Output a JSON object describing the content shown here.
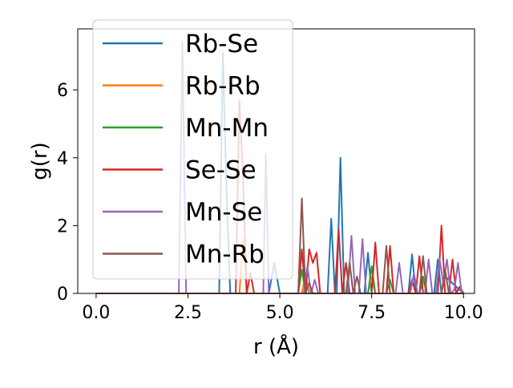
{
  "chart_data": {
    "type": "line",
    "xlabel": "r (Å)",
    "ylabel": "g(r)",
    "xlim": [
      -0.5,
      10.3
    ],
    "ylim": [
      0,
      7.8
    ],
    "xticks": [
      "0.0",
      "2.5",
      "5.0",
      "7.5",
      "10.0"
    ],
    "xtick_values": [
      0,
      2.5,
      5,
      7.5,
      10
    ],
    "yticks": [
      "0",
      "2",
      "4",
      "6"
    ],
    "ytick_values": [
      0,
      2,
      4,
      6
    ],
    "legend_position": "top-left",
    "grid": false,
    "series": [
      {
        "name": "Rb-Se",
        "color": "#1f77b4",
        "x": [
          0,
          3.35,
          3.45,
          3.55,
          3.65,
          4.7,
          4.85,
          5.0,
          6.3,
          6.4,
          6.5,
          6.55,
          6.65,
          6.75,
          7.3,
          7.4,
          7.5,
          8.5,
          8.6,
          8.7,
          9.2,
          9.3,
          9.4,
          9.5,
          10.0
        ],
        "y": [
          0,
          0,
          7.1,
          3.0,
          0,
          0,
          0.9,
          0,
          0,
          2.2,
          0,
          0,
          4.0,
          0,
          0,
          1.2,
          0,
          0,
          1.15,
          0,
          0,
          1.0,
          0,
          0.5,
          0
        ]
      },
      {
        "name": "Rb-Rb",
        "color": "#ff7f0e",
        "x": [
          0,
          3.9,
          4.0,
          4.1,
          5.6,
          5.7,
          5.8,
          7.4,
          7.5,
          7.6,
          8.8,
          8.9,
          9.0,
          10.0
        ],
        "y": [
          0,
          0,
          1.6,
          0,
          0,
          0.6,
          0,
          0,
          0.5,
          0,
          0,
          0.4,
          0,
          0
        ]
      },
      {
        "name": "Mn-Mn",
        "color": "#2ca02c",
        "x": [
          0,
          5.5,
          5.6,
          5.7,
          7.4,
          7.5,
          7.6,
          7.9,
          8.0,
          8.1,
          8.8,
          8.9,
          9.0,
          10.0
        ],
        "y": [
          0,
          0,
          0.7,
          0,
          0,
          0.8,
          0,
          0,
          0.4,
          0,
          0,
          0.5,
          0,
          0
        ]
      },
      {
        "name": "Se-Se",
        "color": "#d62728",
        "x": [
          0,
          3.8,
          3.9,
          4.0,
          4.1,
          4.2,
          4.3,
          5.5,
          5.6,
          5.7,
          5.8,
          5.9,
          6.0,
          6.1,
          6.2,
          6.5,
          6.6,
          6.7,
          6.8,
          6.9,
          7.0,
          7.5,
          7.6,
          7.7,
          7.9,
          8.0,
          8.1,
          8.5,
          8.6,
          8.7,
          8.8,
          8.9,
          9.3,
          9.4,
          9.5,
          9.6,
          9.7,
          9.8,
          9.9,
          10.0
        ],
        "y": [
          0,
          0,
          5.7,
          3.4,
          0,
          0.6,
          0,
          0,
          1.3,
          0,
          1.3,
          0.9,
          1.2,
          0,
          0,
          0,
          1.9,
          0,
          0.9,
          0,
          0,
          0,
          1.5,
          0,
          0,
          1.4,
          0,
          0,
          0.4,
          0,
          1.1,
          0,
          0,
          2.0,
          0,
          0,
          1.0,
          0,
          0.2,
          0
        ]
      },
      {
        "name": "Mn-Se",
        "color": "#9467bd",
        "x": [
          0,
          2.25,
          2.35,
          2.45,
          2.55,
          4.55,
          4.62,
          4.7,
          4.75,
          5.65,
          5.75,
          5.85,
          5.95,
          6.05,
          6.15,
          6.25,
          6.75,
          6.85,
          6.95,
          7.05,
          7.15,
          7.25,
          7.35,
          7.45,
          7.55,
          7.65,
          8.05,
          8.15,
          8.25,
          8.35,
          8.45,
          8.55,
          8.65,
          8.75,
          8.85,
          8.95,
          9.05,
          9.15,
          9.25,
          9.35,
          9.45,
          9.55,
          9.65,
          9.75,
          9.85,
          9.95
        ],
        "y": [
          0,
          0,
          7.4,
          0,
          0,
          0,
          4.1,
          0,
          0,
          0,
          0.8,
          0,
          0.4,
          0,
          0,
          0,
          0,
          0,
          1.7,
          0,
          0,
          1.6,
          0,
          0,
          0,
          0,
          0,
          0,
          0.9,
          0,
          0,
          0,
          0.6,
          0,
          0,
          0,
          1.0,
          0,
          0,
          1.0,
          0.3,
          1.0,
          0,
          0.1,
          0.9,
          0
        ]
      },
      {
        "name": "Mn-Rb",
        "color": "#8c564b",
        "x": [
          0,
          5.5,
          5.6,
          5.7,
          5.8,
          5.9,
          6.0,
          6.8,
          6.9,
          7.0,
          7.1,
          7.2,
          7.8,
          7.9,
          8.0,
          8.8,
          8.9,
          9.0,
          9.4,
          9.5,
          9.6,
          10.0
        ],
        "y": [
          0,
          0,
          2.8,
          0,
          0.3,
          0,
          0,
          0,
          0.9,
          0,
          0.5,
          0,
          0,
          1.4,
          0,
          0,
          1.1,
          0,
          0,
          0.7,
          0,
          0
        ]
      }
    ]
  }
}
